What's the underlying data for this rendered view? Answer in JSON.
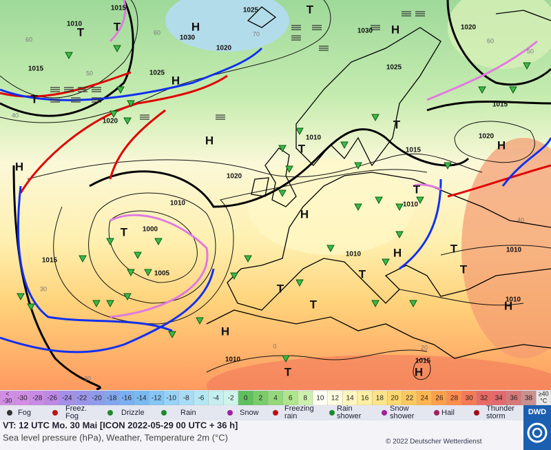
{
  "map": {
    "pressure_labels": [
      "1015",
      "1010",
      "1025",
      "1030",
      "1020",
      "1030",
      "1025",
      "1020",
      "1015",
      "1025",
      "1020",
      "1010",
      "1015",
      "1020",
      "1015",
      "1020",
      "1010",
      "1010",
      "1000",
      "1005",
      "1015",
      "1010",
      "1010",
      "1010",
      "1010",
      "1015"
    ],
    "centers": [
      "H",
      "H",
      "H",
      "H",
      "H",
      "H",
      "H",
      "H",
      "H",
      "H",
      "H",
      "T",
      "T",
      "T",
      "T",
      "T",
      "T",
      "T",
      "T",
      "T",
      "T",
      "T",
      "T",
      "T",
      "T"
    ],
    "grid_labels": [
      "60",
      "50",
      "40",
      "30",
      "60",
      "70",
      "60",
      "50",
      "40",
      "30",
      "20",
      "0"
    ]
  },
  "scale": {
    "labels": [
      {
        "top": "<",
        "bottom": "-30"
      },
      -30,
      -28,
      -26,
      -24,
      -22,
      -20,
      -18,
      -16,
      -14,
      -12,
      -10,
      -8,
      -6,
      -4,
      -2,
      0,
      2,
      4,
      6,
      8,
      10,
      12,
      14,
      16,
      18,
      20,
      22,
      24,
      26,
      28,
      30,
      32,
      34,
      36,
      38,
      {
        "top": "≥40",
        "bottom": "°C"
      }
    ],
    "colors": [
      "#d28de6",
      "#d28de6",
      "#c98ae6",
      "#bf87e6",
      "#a48fe8",
      "#9a95ea",
      "#8f9cec",
      "#82a6ee",
      "#7ab0f0",
      "#7abaf2",
      "#86c6f4",
      "#98d2f6",
      "#a8dcf6",
      "#b6e6f4",
      "#c4eef0",
      "#cff4ea",
      "#5fbf5f",
      "#7acc6a",
      "#95d87a",
      "#b0e48e",
      "#cdf0ac",
      "#fffff4",
      "#fffde0",
      "#fff6c0",
      "#ffeea4",
      "#ffe488",
      "#ffd870",
      "#ffc860",
      "#ffb650",
      "#ffa048",
      "#ff8c4c",
      "#f47a56",
      "#e96a64",
      "#e26a6e",
      "#d87878",
      "#c99090",
      "#e8e8e8"
    ]
  },
  "legend": {
    "items": [
      {
        "lines": [
          "Fog"
        ]
      },
      {
        "lines": [
          "Freez.",
          "Fog"
        ]
      },
      {
        "lines": [
          "Drizzle"
        ]
      },
      {
        "lines": [
          "Rain"
        ]
      },
      {
        "lines": [
          "Snow"
        ]
      },
      {
        "lines": [
          "Freezing",
          "rain"
        ]
      },
      {
        "lines": [
          "Rain",
          "shower"
        ]
      },
      {
        "lines": [
          "Snow",
          "shower"
        ]
      },
      {
        "lines": [
          "Hail"
        ]
      },
      {
        "lines": [
          "Thunder",
          "storm"
        ]
      }
    ]
  },
  "footer": {
    "valid_time": "VT: 12 UTC Mo.  30 Mai [ICON 2022-05-29  00 UTC + 36 h]",
    "description": "Sea level pressure (hPa), Weather, Temperature 2m (°C)",
    "copyright": "© 2022 Deutscher Wetterdienst",
    "logo": "DWD"
  }
}
